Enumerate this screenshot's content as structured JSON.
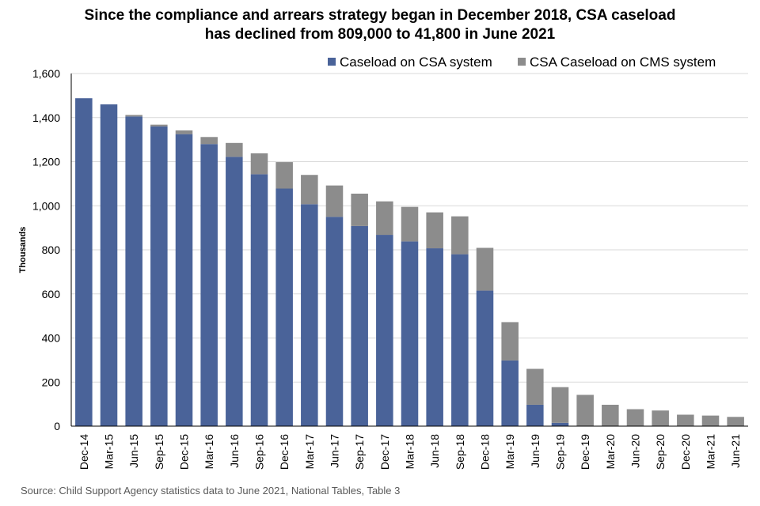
{
  "title_line1": "Since the compliance and arrears strategy began in December 2018, CSA caseload",
  "title_line2": "has declined from 809,000 to 41,800 in June 2021",
  "source": "Source: Child Support Agency statistics data to June 2021, National Tables, Table 3",
  "colors": {
    "csa": "#4a6399",
    "cms": "#8c8c8c",
    "grid": "#d9d9d9",
    "axis": "#000000"
  },
  "chart_data": {
    "type": "bar",
    "stacked": true,
    "title": "Since the compliance and arrears strategy began in December 2018, CSA caseload has declined from 809,000 to 41,800 in June 2021",
    "xlabel": "",
    "ylabel": "Thousands",
    "ylim": [
      0,
      1600
    ],
    "yticks": [
      "0",
      "200",
      "400",
      "600",
      "800",
      "1,000",
      "1,200",
      "1,400",
      "1,600"
    ],
    "grid": true,
    "legend_position": "top-right",
    "categories": [
      "Dec-14",
      "Mar-15",
      "Jun-15",
      "Sep-15",
      "Dec-15",
      "Mar-16",
      "Jun-16",
      "Sep-16",
      "Dec-16",
      "Mar-17",
      "Jun-17",
      "Sep-17",
      "Dec-17",
      "Mar-18",
      "Jun-18",
      "Sep-18",
      "Dec-18",
      "Mar-19",
      "Jun-19",
      "Sep-19",
      "Dec-19",
      "Mar-20",
      "Jun-20",
      "Sep-20",
      "Dec-20",
      "Mar-21",
      "Jun-21"
    ],
    "series": [
      {
        "name": "Caseload on CSA system",
        "values": [
          1488,
          1460,
          1405,
          1360,
          1325,
          1280,
          1222,
          1143,
          1078,
          1007,
          950,
          908,
          868,
          838,
          807,
          780,
          615,
          298,
          97,
          15,
          0,
          0,
          0,
          0,
          0,
          0,
          0
        ]
      },
      {
        "name": "CSA Caseload on CMS system",
        "values": [
          0,
          0,
          7,
          8,
          17,
          32,
          63,
          95,
          120,
          133,
          142,
          147,
          152,
          157,
          163,
          172,
          194,
          174,
          163,
          162,
          142,
          97,
          77,
          71,
          52,
          48,
          42
        ]
      }
    ]
  }
}
